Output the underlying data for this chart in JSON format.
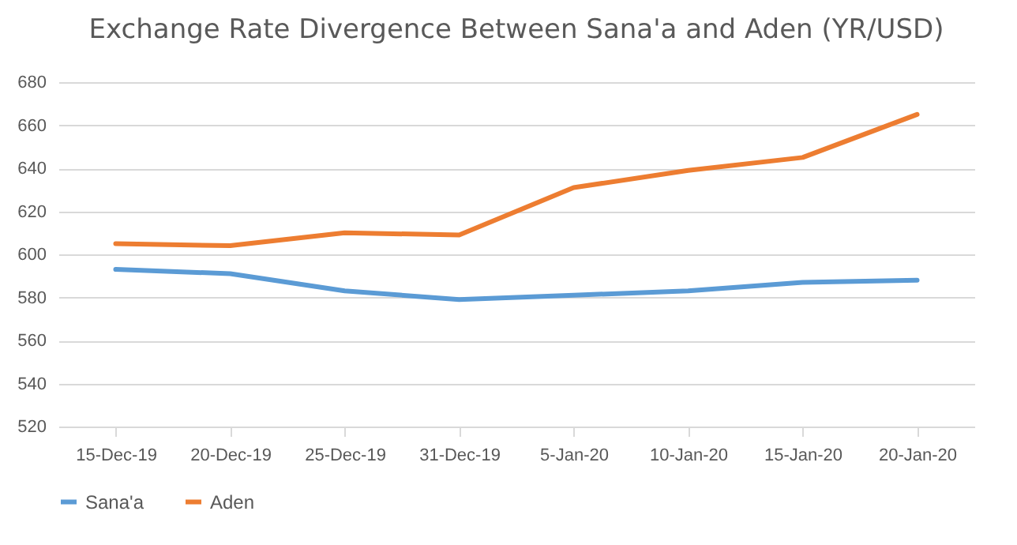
{
  "chart_data": {
    "type": "line",
    "title": "Exchange Rate Divergence Between Sana'a and Aden (YR/USD)",
    "categories": [
      "15-Dec-19",
      "20-Dec-19",
      "25-Dec-19",
      "31-Dec-19",
      "5-Jan-20",
      "10-Jan-20",
      "15-Jan-20",
      "20-Jan-20"
    ],
    "series": [
      {
        "name": "Sana'a",
        "color": "#5b9bd5",
        "values": [
          593,
          591,
          583,
          579,
          581,
          583,
          587,
          588
        ]
      },
      {
        "name": "Aden",
        "color": "#ed7d31",
        "values": [
          605,
          604,
          610,
          609,
          631,
          639,
          645,
          665
        ]
      }
    ],
    "ylim": [
      520,
      680
    ],
    "yticks": [
      520,
      540,
      560,
      580,
      600,
      620,
      640,
      660,
      680
    ],
    "grid": "y",
    "legend": "bottom",
    "marker": "none",
    "line_style": "solid"
  }
}
